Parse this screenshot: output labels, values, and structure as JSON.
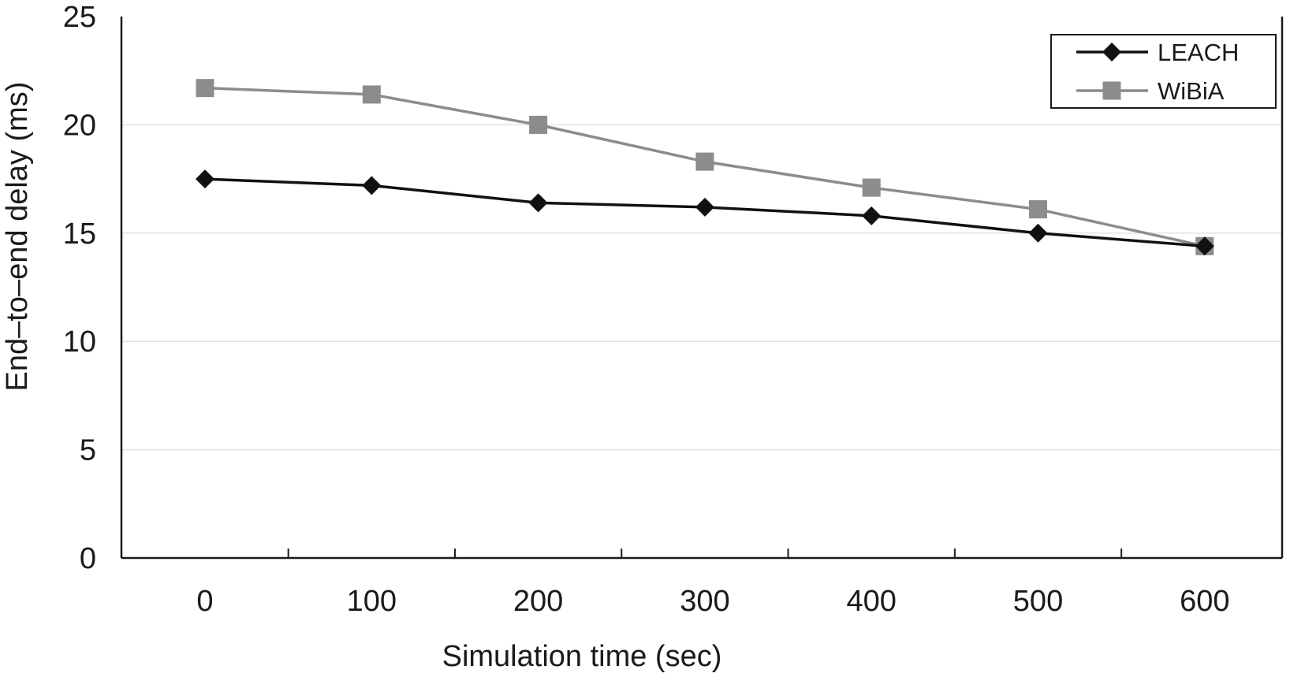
{
  "chart_data": {
    "type": "line",
    "title": "",
    "xlabel": "Simulation time (sec)",
    "ylabel": "End–to–end delay (ms)",
    "x": [
      0,
      100,
      200,
      300,
      400,
      500,
      600
    ],
    "x_tick_labels": [
      "0",
      "100",
      "200",
      "300",
      "400",
      "500",
      "600"
    ],
    "y_ticks": [
      0,
      5,
      10,
      15,
      20,
      25
    ],
    "y_tick_labels": [
      "0",
      "5",
      "10",
      "15",
      "20",
      "25"
    ],
    "ylim": [
      0,
      25
    ],
    "grid": "horizontal",
    "legend_position": "top-right",
    "series": [
      {
        "name": "LEACH",
        "marker": "diamond",
        "color": "#111111",
        "values": [
          17.5,
          17.2,
          16.4,
          16.2,
          15.8,
          15.0,
          14.4
        ]
      },
      {
        "name": "WiBiA",
        "marker": "square",
        "color": "#8c8c8c",
        "values": [
          21.7,
          21.4,
          20.0,
          18.3,
          17.1,
          16.1,
          14.4
        ]
      }
    ]
  }
}
